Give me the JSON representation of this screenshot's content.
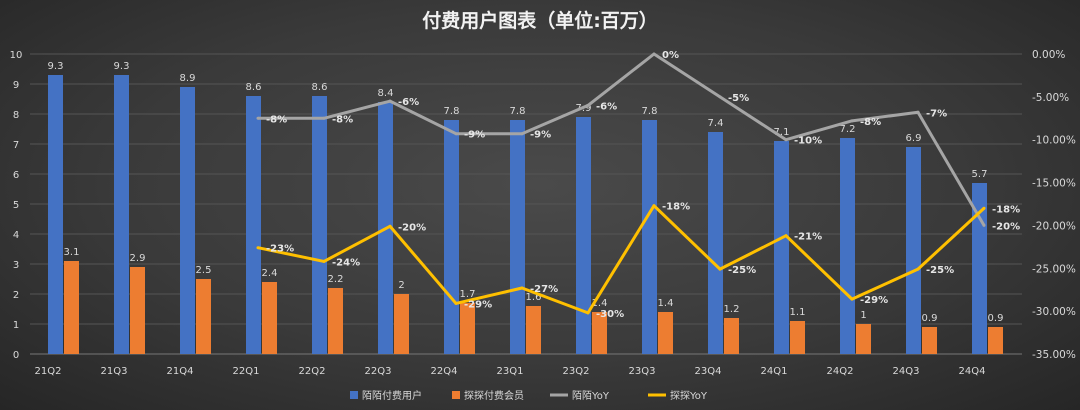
{
  "chart_data": {
    "type": "bar+line",
    "title": "付费用户图表（单位:百万）",
    "categories": [
      "21Q2",
      "21Q3",
      "21Q4",
      "22Q1",
      "22Q2",
      "22Q3",
      "22Q4",
      "23Q1",
      "23Q2",
      "23Q3",
      "23Q4",
      "24Q1",
      "24Q2",
      "24Q3",
      "24Q4"
    ],
    "left_axis": {
      "ylim": [
        0,
        10
      ],
      "ticks": [
        "0",
        "1",
        "2",
        "3",
        "4",
        "5",
        "6",
        "7",
        "8",
        "9",
        "10"
      ]
    },
    "right_axis": {
      "ylim": [
        -35,
        0
      ],
      "ticks": [
        "0.00%",
        "-5.00%",
        "-10.00%",
        "-15.00%",
        "-20.00%",
        "-25.00%",
        "-30.00%",
        "-35.00%"
      ]
    },
    "grid": true,
    "legend_position": "bottom",
    "series": [
      {
        "name": "陌陌付费用户",
        "type": "bar",
        "axis": "left",
        "color": "#4472c4",
        "values": [
          9.3,
          9.3,
          8.9,
          8.6,
          8.6,
          8.4,
          7.8,
          7.8,
          7.9,
          7.8,
          7.4,
          7.1,
          7.2,
          6.9,
          5.7
        ],
        "labels": [
          "9.3",
          "9.3",
          "8.9",
          "8.6",
          "8.6",
          "8.4",
          "7.8",
          "7.8",
          "7.9",
          "7.8",
          "7.4",
          "7.1",
          "7.2",
          "6.9",
          "5.7"
        ]
      },
      {
        "name": "探探付费会员",
        "type": "bar",
        "axis": "left",
        "color": "#ed7d31",
        "values": [
          3.1,
          2.9,
          2.5,
          2.4,
          2.2,
          2,
          1.7,
          1.6,
          1.4,
          1.4,
          1.2,
          1.1,
          1,
          0.9,
          0.9
        ],
        "labels": [
          "3.1",
          "2.9",
          "2.5",
          "2.4",
          "2.2",
          "2",
          "1.7",
          "1.6",
          "1.4",
          "1.4",
          "1.2",
          "1.1",
          "1",
          "0.9",
          "0.9"
        ]
      },
      {
        "name": "陌陌YoY",
        "type": "line",
        "axis": "right",
        "color": "#a5a5a5",
        "values": [
          null,
          null,
          null,
          -7.5,
          -7.5,
          -5.5,
          -9.3,
          -9.3,
          -6,
          0,
          -5,
          -10,
          -7.8,
          -6.8,
          -20
        ],
        "labels": [
          "",
          "",
          "",
          "-8%",
          "-8%",
          "-6%",
          "-9%",
          "-9%",
          "-6%",
          "0%",
          "-5%",
          "-10%",
          "-8%",
          "-7%",
          "-20%"
        ]
      },
      {
        "name": "探探YoY",
        "type": "line",
        "axis": "right",
        "color": "#ffc000",
        "values": [
          null,
          null,
          null,
          -22.6,
          -24.2,
          -20.1,
          -29.1,
          -27.3,
          -30.2,
          -17.7,
          -25.1,
          -21.2,
          -28.6,
          -25.1,
          -18
        ],
        "labels": [
          "",
          "",
          "",
          "-23%",
          "-24%",
          "-20%",
          "-29%",
          "-27%",
          "-30%",
          "-18%",
          "-25%",
          "-21%",
          "-29%",
          "-25%",
          "-18%"
        ]
      }
    ]
  }
}
